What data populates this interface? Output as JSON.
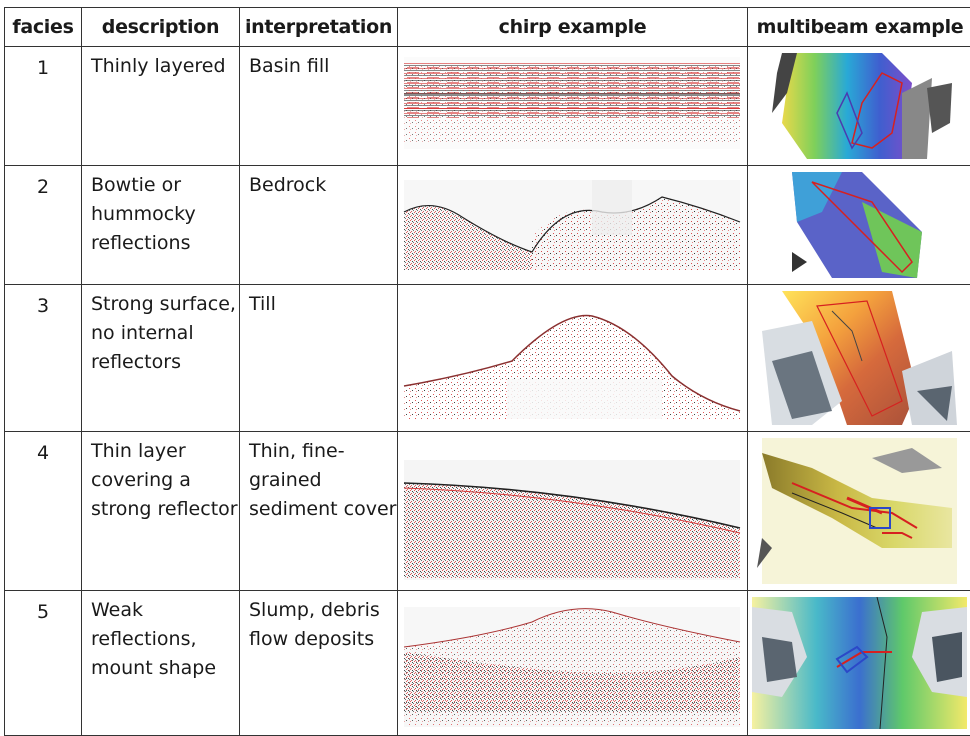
{
  "headers": {
    "facies": "facies",
    "description": "description",
    "interpretation": "interpretation",
    "chirp": "chirp example",
    "multibeam": "multibeam example"
  },
  "rows": [
    {
      "facies": "1",
      "description": "Thinly layered",
      "interpretation": "Basin fill"
    },
    {
      "facies": "2",
      "description": "Bowtie or hummocky reflections",
      "interpretation": "Bedrock"
    },
    {
      "facies": "3",
      "description": "Strong surface, no internal reflectors",
      "interpretation": "Till"
    },
    {
      "facies": "4",
      "description": "Thin layer covering a strong reflector",
      "interpretation": "Thin, fine-grained sediment cover"
    },
    {
      "facies": "5",
      "description": "Weak reflections, mount shape",
      "interpretation": "Slump, debris flow deposits"
    }
  ],
  "colors": {
    "chirp_red": "#d93a3a",
    "chirp_black": "#222222",
    "track_red": "#d62020",
    "track_blue": "#2b48c8"
  }
}
